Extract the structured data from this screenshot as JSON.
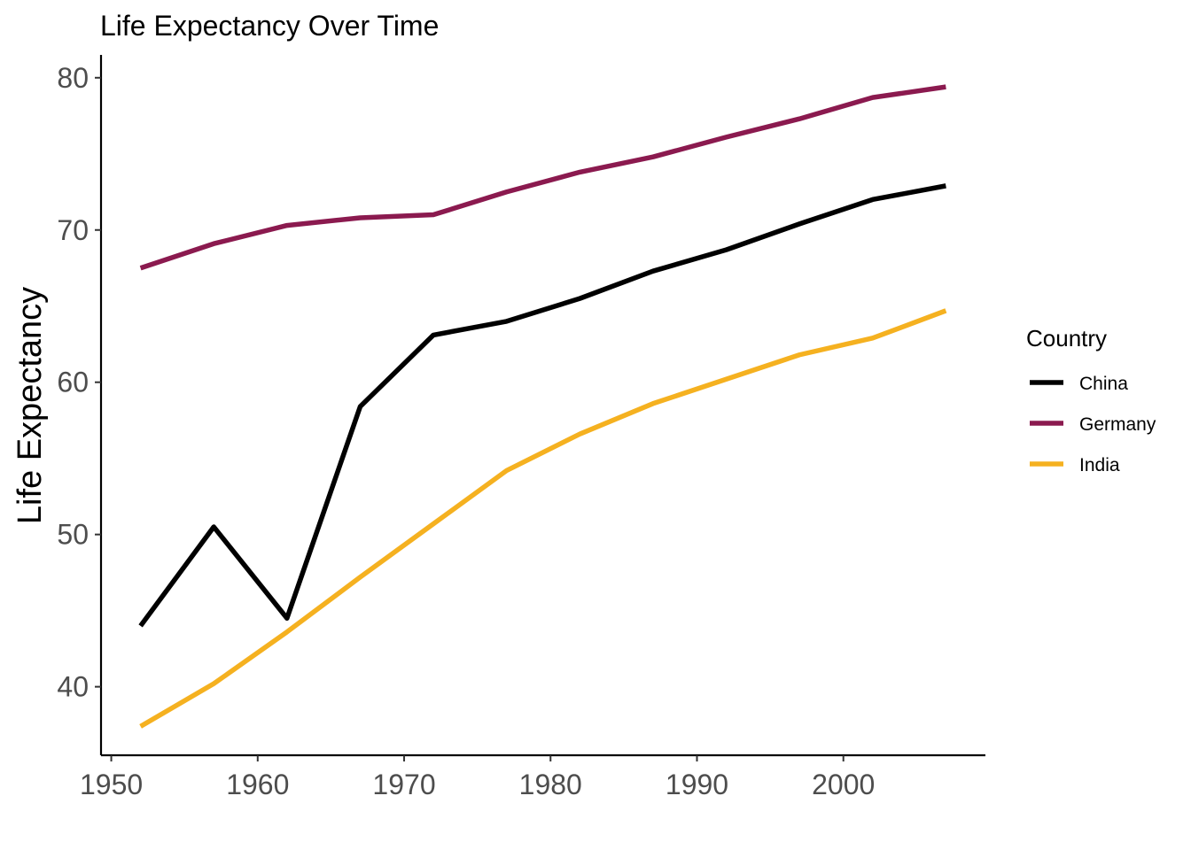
{
  "chart_data": {
    "type": "line",
    "title": "Life Expectancy Over Time",
    "xlabel": "",
    "ylabel": "Life Expectancy",
    "xlim": [
      1949.3,
      2009.7
    ],
    "ylim": [
      35.5,
      81.5
    ],
    "x_ticks": [
      1950,
      1960,
      1970,
      1980,
      1990,
      2000
    ],
    "y_ticks": [
      40,
      50,
      60,
      70,
      80
    ],
    "grid": false,
    "legend": {
      "title": "Country",
      "position": "right"
    },
    "x": [
      1952,
      1957,
      1962,
      1967,
      1972,
      1977,
      1982,
      1987,
      1992,
      1997,
      2002,
      2007
    ],
    "series": [
      {
        "name": "China",
        "color": "#000000",
        "values": [
          44.0,
          50.5,
          44.5,
          58.4,
          63.1,
          64.0,
          65.5,
          67.3,
          68.7,
          70.4,
          72.0,
          72.9
        ]
      },
      {
        "name": "Germany",
        "color": "#8B1A4F",
        "values": [
          67.5,
          69.1,
          70.3,
          70.8,
          71.0,
          72.5,
          73.8,
          74.8,
          76.1,
          77.3,
          78.7,
          79.4
        ]
      },
      {
        "name": "India",
        "color": "#F5B120",
        "values": [
          37.4,
          40.2,
          43.6,
          47.2,
          50.7,
          54.2,
          56.6,
          58.6,
          60.2,
          61.8,
          62.9,
          64.7
        ]
      }
    ]
  }
}
